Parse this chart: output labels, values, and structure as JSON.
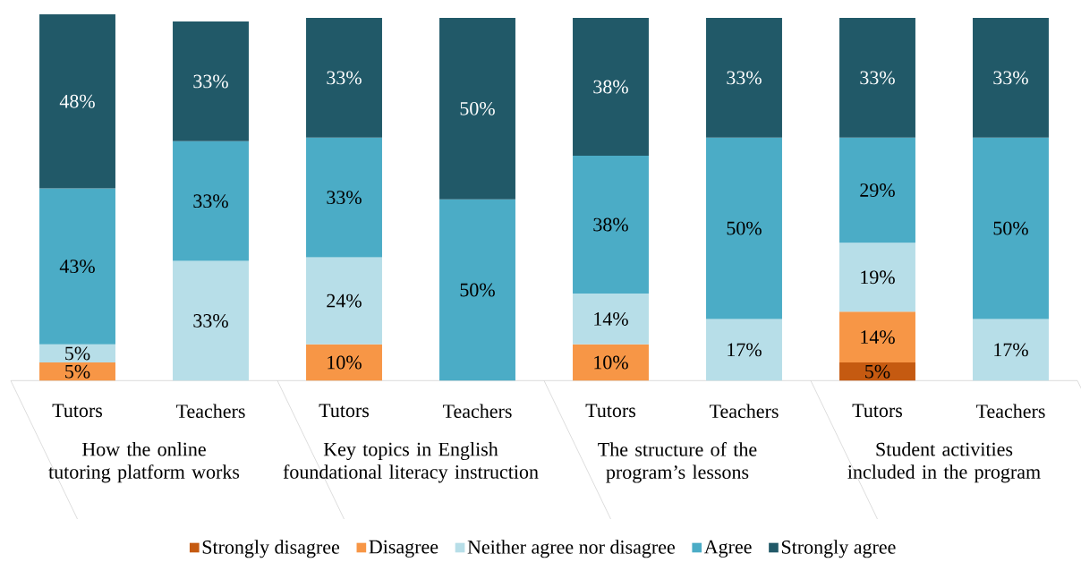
{
  "chart_data": {
    "type": "bar",
    "stacked": true,
    "legend": "bottom",
    "categories": [
      "Tutors",
      "Teachers",
      "Tutors",
      "Teachers",
      "Tutors",
      "Teachers",
      "Tutors",
      "Teachers"
    ],
    "annotations": [
      "How the online tutoring platform works",
      "Key topics in English foundational literacy instruction",
      "The structure of the program’s lessons",
      "Student activities included in the program"
    ],
    "series": [
      {
        "name": "Strongly disagree",
        "color": "#c55a11",
        "values": [
          null,
          null,
          null,
          null,
          null,
          null,
          5,
          null
        ],
        "value_labels": [
          null,
          null,
          null,
          null,
          null,
          null,
          "5%",
          null
        ]
      },
      {
        "name": "Disagree",
        "color": "#f79646",
        "values": [
          5,
          null,
          10,
          null,
          10,
          null,
          14,
          null
        ],
        "value_labels": [
          "5%",
          null,
          "10%",
          null,
          "10%",
          null,
          "14%",
          null
        ]
      },
      {
        "name": "Neither agree nor disagree",
        "color": "#b7dee8",
        "values": [
          5,
          33,
          24,
          null,
          14,
          17,
          19,
          17
        ],
        "value_labels": [
          "5%",
          "33%",
          "24%",
          null,
          "14%",
          "17%",
          "19%",
          "17%"
        ]
      },
      {
        "name": "Agree",
        "color": "#4bacc6",
        "values": [
          43,
          33,
          33,
          50,
          38,
          50,
          29,
          50
        ],
        "value_labels": [
          "43%",
          "33%",
          "33%",
          "50%",
          "38%",
          "50%",
          "29%",
          "50%"
        ]
      },
      {
        "name": "Strongly agree",
        "color": "#215968",
        "values": [
          48,
          33,
          33,
          50,
          38,
          33,
          33,
          33
        ],
        "value_labels": [
          "48%",
          "33%",
          "33%",
          "50%",
          "38%",
          "33%",
          "33%",
          "33%"
        ]
      }
    ]
  }
}
